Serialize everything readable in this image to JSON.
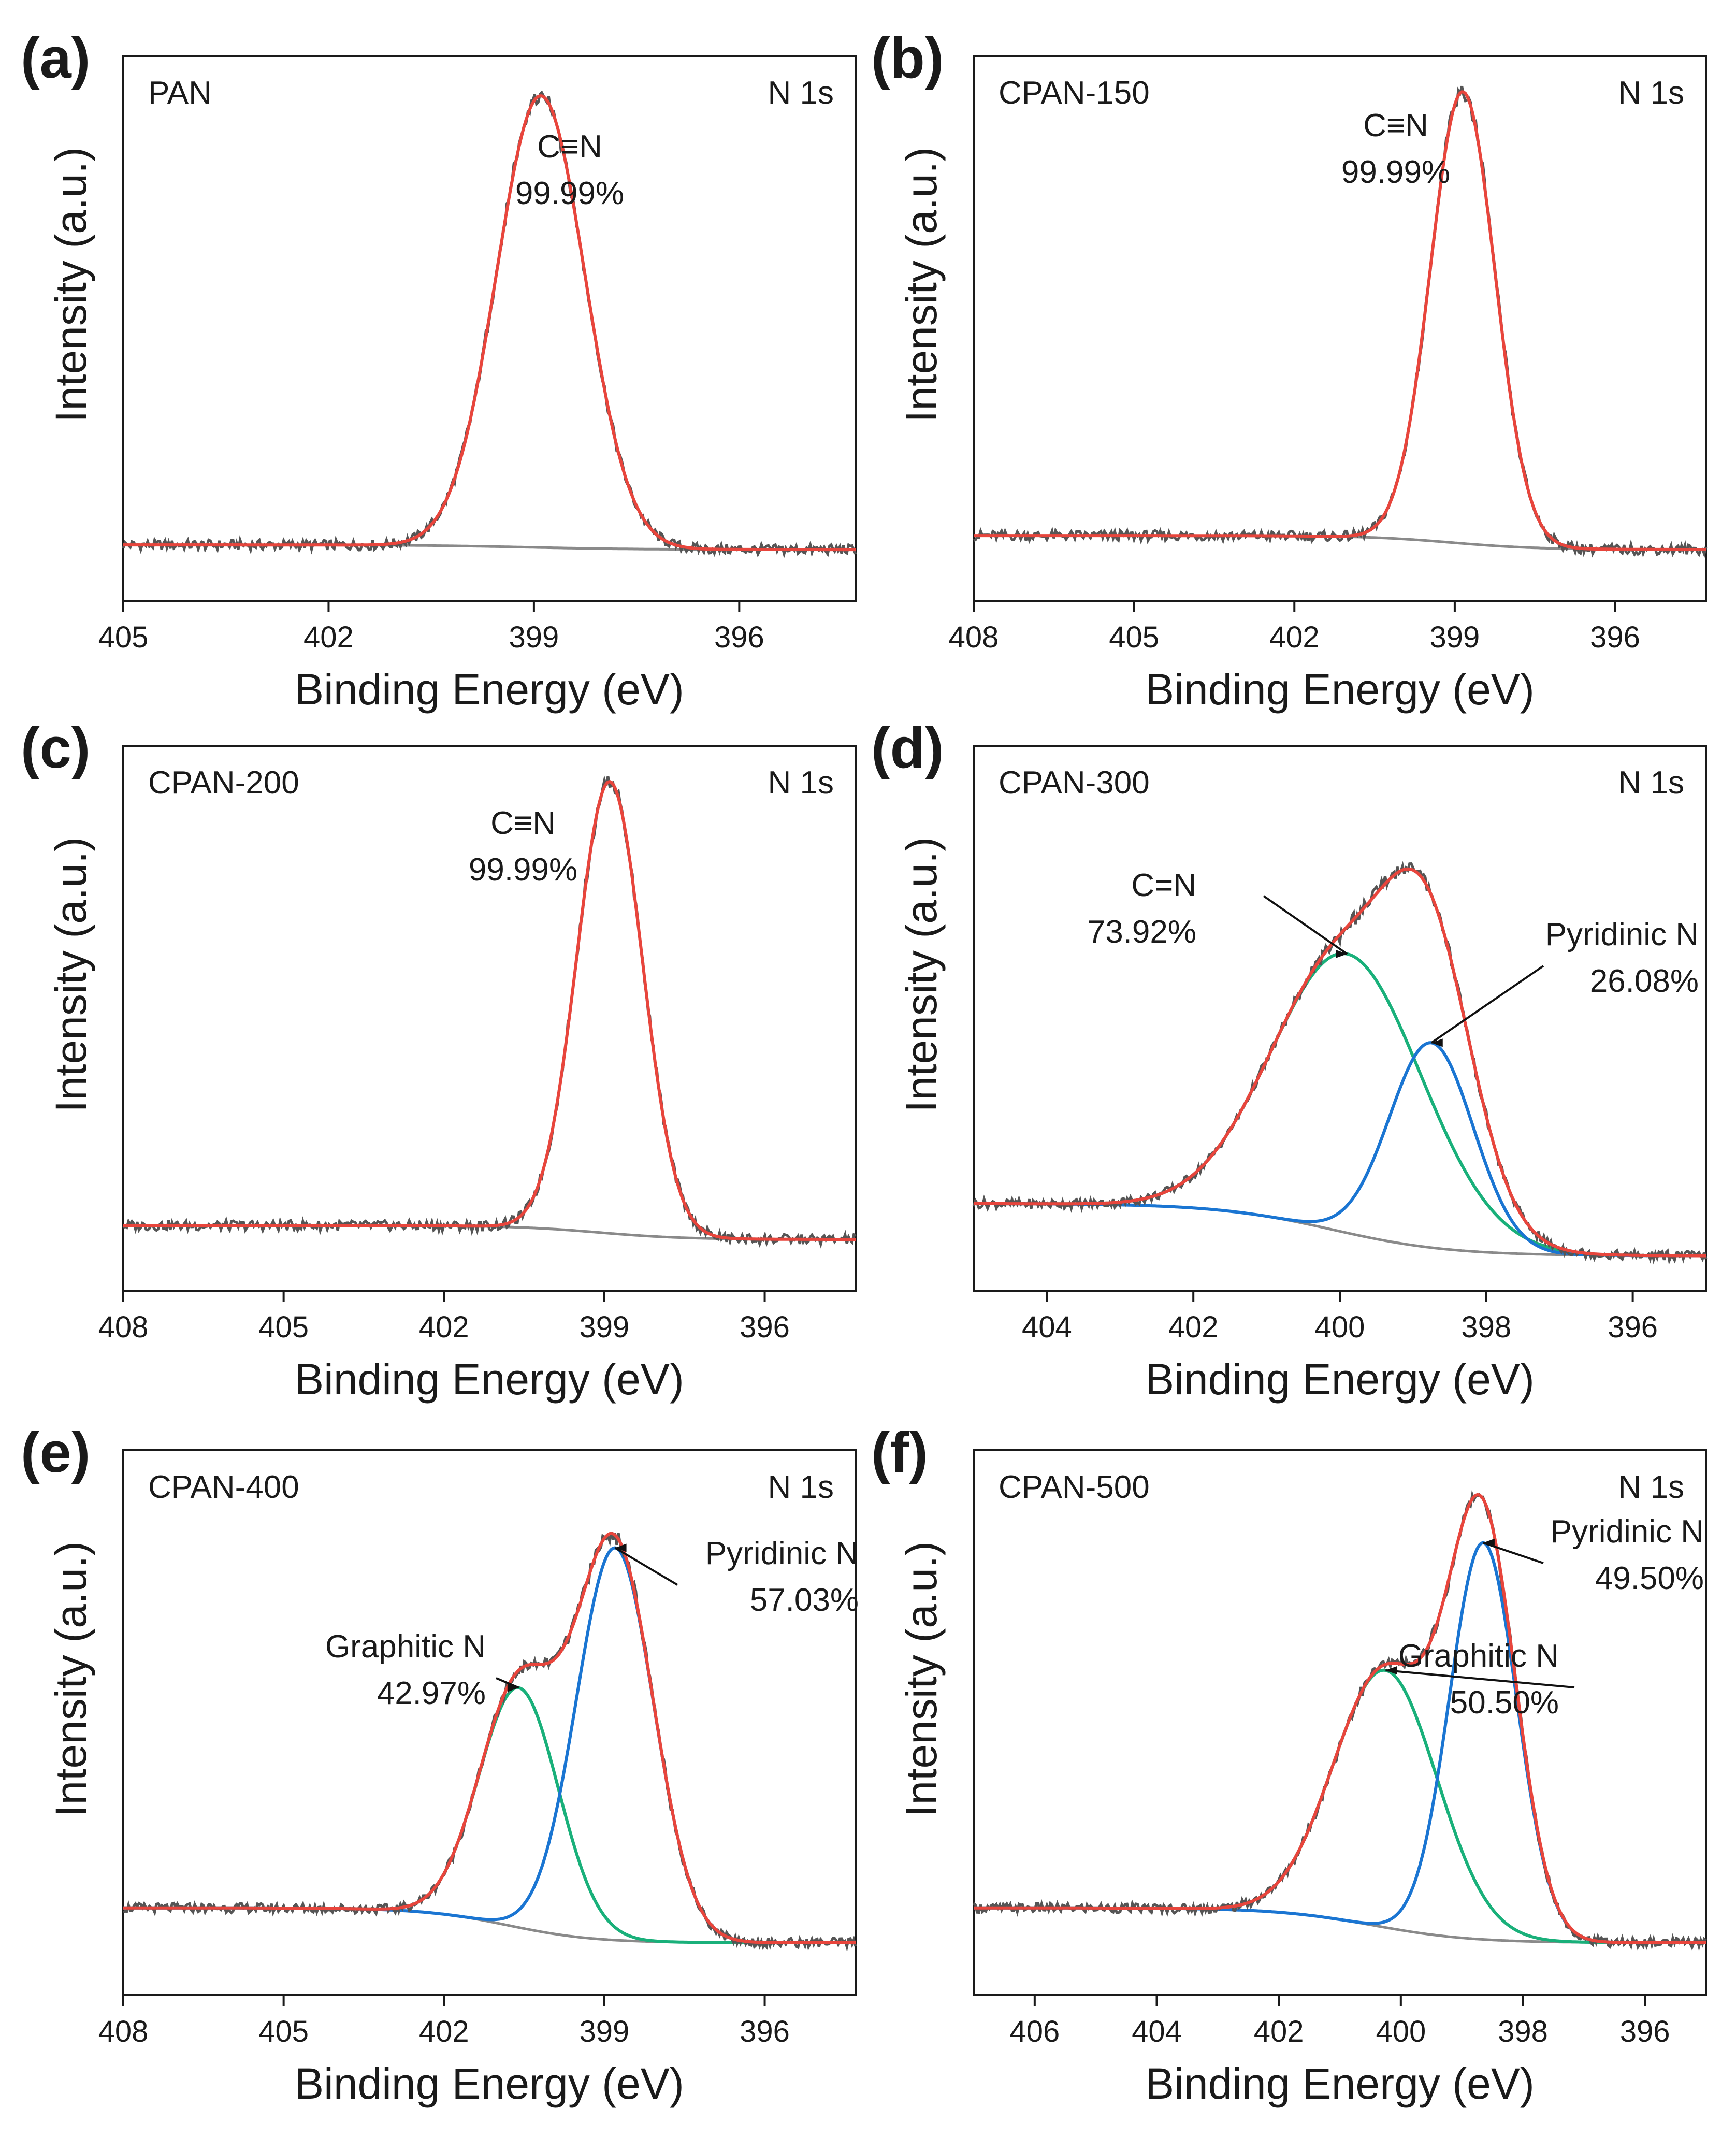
{
  "figure": {
    "xlabel": "Binding Energy (eV)",
    "ylabel": "Intensity (a.u.)"
  },
  "colors": {
    "raw": "#555555",
    "fit": "#e8453c",
    "background": "#8a8a8a",
    "component_green": "#19b07a",
    "component_blue": "#1a75d2",
    "axis": "#1a1a1a"
  },
  "chart_data": [
    {
      "panel": "(a)",
      "type": "line",
      "sample": "PAN",
      "region": "N 1s",
      "xlabel": "Binding Energy (eV)",
      "ylabel": "Intensity (a.u.)",
      "xlim": [
        405,
        394.3
      ],
      "xticks": [
        405,
        402,
        399,
        396
      ],
      "ylim": [
        -0.12,
        1.05
      ],
      "background": {
        "start": 0.0,
        "end": -0.01
      },
      "components": [
        {
          "name": "C≡N",
          "percent": "99.99%",
          "center": 398.9,
          "fwhm": 1.52,
          "height": 0.97,
          "color": "fit",
          "draw": false,
          "label": "C≡N",
          "label_pct": "99.99%"
        }
      ]
    },
    {
      "panel": "(b)",
      "type": "line",
      "sample": "CPAN-150",
      "region": "N 1s",
      "xlabel": "Binding Energy (eV)",
      "ylabel": "Intensity (a.u.)",
      "xlim": [
        408,
        394.3
      ],
      "xticks": [
        408,
        405,
        402,
        399,
        396
      ],
      "ylim": [
        -0.12,
        1.05
      ],
      "background": {
        "start": 0.02,
        "end": -0.01
      },
      "components": [
        {
          "name": "C≡N",
          "percent": "99.99%",
          "center": 398.85,
          "fwhm": 1.42,
          "height": 0.97,
          "color": "fit",
          "draw": false,
          "label": "C≡N",
          "label_pct": "99.99%"
        }
      ]
    },
    {
      "panel": "(c)",
      "type": "line",
      "sample": "CPAN-200",
      "region": "N 1s",
      "xlabel": "Binding Energy (eV)",
      "ylabel": "Intensity (a.u.)",
      "xlim": [
        408,
        394.3
      ],
      "xticks": [
        408,
        405,
        402,
        399,
        396
      ],
      "ylim": [
        -0.12,
        1.05
      ],
      "background": {
        "start": 0.02,
        "end": -0.01
      },
      "components": [
        {
          "name": "C≡N",
          "percent": "99.99%",
          "center": 398.9,
          "fwhm": 1.45,
          "height": 0.97,
          "color": "fit",
          "draw": false,
          "label": "C≡N",
          "label_pct": "99.99%"
        }
      ]
    },
    {
      "panel": "(d)",
      "type": "line",
      "sample": "CPAN-300",
      "region": "N 1s",
      "xlabel": "Binding Energy (eV)",
      "ylabel": "Intensity (a.u.)",
      "xlim": [
        405,
        395
      ],
      "xticks": [
        404,
        402,
        400,
        398,
        396
      ],
      "ylim": [
        -0.2,
        1.05
      ],
      "background": {
        "start": 0.0,
        "end": -0.12
      },
      "components": [
        {
          "name": "C=N",
          "percent": "73.92%",
          "center": 399.9,
          "fwhm": 2.4,
          "height": 0.64,
          "color": "component_green",
          "draw": true,
          "label": "C=N",
          "label_pct": "73.92%"
        },
        {
          "name": "Pyridinic N",
          "percent": "26.08%",
          "center": 398.75,
          "fwhm": 1.35,
          "height": 0.47,
          "color": "component_blue",
          "draw": true,
          "label": "Pyridinic N",
          "label_pct": "26.08%"
        }
      ]
    },
    {
      "panel": "(e)",
      "type": "line",
      "sample": "CPAN-400",
      "region": "N 1s",
      "xlabel": "Binding Energy (eV)",
      "ylabel": "Intensity (a.u.)",
      "xlim": [
        408,
        394.3
      ],
      "xticks": [
        408,
        405,
        402,
        399,
        396
      ],
      "ylim": [
        -0.2,
        1.05
      ],
      "background": {
        "start": 0.0,
        "end": -0.08
      },
      "components": [
        {
          "name": "Graphitic N",
          "percent": "42.97%",
          "center": 400.6,
          "fwhm": 1.75,
          "height": 0.55,
          "color": "component_green",
          "draw": true,
          "label": "Graphitic N",
          "label_pct": "42.97%"
        },
        {
          "name": "Pyridinic N",
          "percent": "57.03%",
          "center": 398.8,
          "fwhm": 1.7,
          "height": 0.9,
          "color": "component_blue",
          "draw": true,
          "label": "Pyridinic N",
          "label_pct": "57.03%"
        }
      ]
    },
    {
      "panel": "(f)",
      "type": "line",
      "sample": "CPAN-500",
      "region": "N 1s",
      "xlabel": "Binding Energy (eV)",
      "ylabel": "Intensity (a.u.)",
      "xlim": [
        407,
        395
      ],
      "xticks": [
        406,
        404,
        402,
        400,
        398,
        396
      ],
      "ylim": [
        -0.2,
        1.05
      ],
      "background": {
        "start": 0.0,
        "end": -0.08
      },
      "components": [
        {
          "name": "Graphitic N",
          "percent": "50.50%",
          "center": 400.25,
          "fwhm": 2.0,
          "height": 0.59,
          "color": "component_green",
          "draw": true,
          "label": "Graphitic N",
          "label_pct": "50.50%"
        },
        {
          "name": "Pyridinic N",
          "percent": "49.50%",
          "center": 398.65,
          "fwhm": 1.3,
          "height": 0.91,
          "color": "component_blue",
          "draw": true,
          "label": "Pyridinic N",
          "label_pct": "49.50%"
        }
      ]
    }
  ]
}
